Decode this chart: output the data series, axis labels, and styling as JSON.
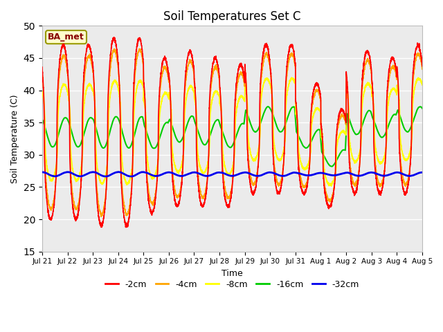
{
  "title": "Soil Temperatures Set C",
  "xlabel": "Time",
  "ylabel": "Soil Temperature (C)",
  "ylim": [
    15,
    50
  ],
  "yticks": [
    15,
    20,
    25,
    30,
    35,
    40,
    45,
    50
  ],
  "legend_label": "BA_met",
  "series": {
    "-2cm": {
      "color": "#FF0000",
      "linewidth": 1.2
    },
    "-4cm": {
      "color": "#FFA500",
      "linewidth": 1.2
    },
    "-8cm": {
      "color": "#FFFF00",
      "linewidth": 1.2
    },
    "-16cm": {
      "color": "#00CC00",
      "linewidth": 1.5
    },
    "-32cm": {
      "color": "#0000EE",
      "linewidth": 2.0
    }
  },
  "x_tick_labels": [
    "Jul 21",
    "Jul 22",
    "Jul 23",
    "Jul 24",
    "Jul 25",
    "Jul 26",
    "Jul 27",
    "Jul 28",
    "Jul 29",
    "Jul 30",
    "Jul 31",
    "Aug 1",
    "Aug 2",
    "Aug 3",
    "Aug 4",
    "Aug 5"
  ],
  "plot_bg_color": "#EBEBEB",
  "title_fontsize": 12,
  "axis_fontsize": 9,
  "days": 16
}
